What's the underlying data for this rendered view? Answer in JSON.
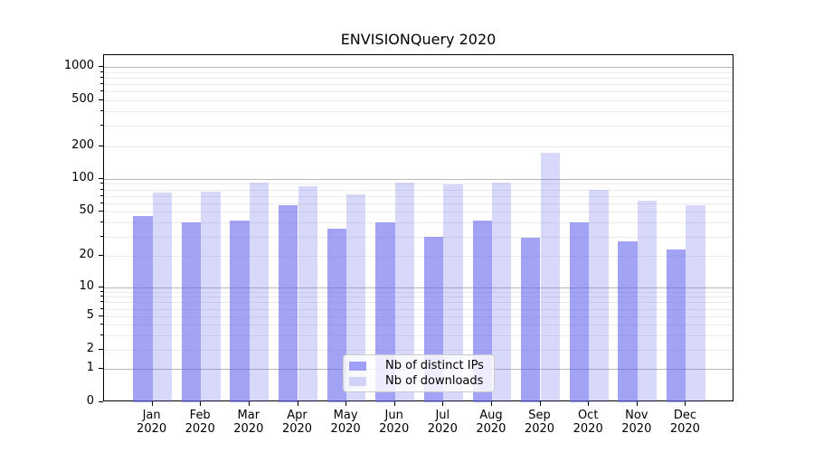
{
  "chart_data": {
    "type": "bar",
    "title": "ENVISIONQuery 2020",
    "categories": [
      "Jan",
      "Feb",
      "Mar",
      "Apr",
      "May",
      "Jun",
      "Jul",
      "Aug",
      "Sep",
      "Oct",
      "Nov",
      "Dec"
    ],
    "year_label": "2020",
    "series": [
      {
        "name": "Nb of distinct IPs",
        "color": "rgba(107,107,240,0.62)",
        "color_hex_on_white": "#a4a4f6",
        "values": [
          46,
          40,
          42,
          58,
          35,
          40,
          30,
          42,
          29,
          40,
          27,
          23
        ]
      },
      {
        "name": "Nb of downloads",
        "color": "rgba(116,116,236,0.28)",
        "color_hex_on_white": "#d9d9f6",
        "values": [
          75,
          76,
          92,
          85,
          72,
          93,
          88,
          93,
          174,
          80,
          63,
          58
        ]
      }
    ],
    "yticks": [
      0,
      1,
      2,
      5,
      10,
      20,
      50,
      100,
      200,
      500,
      1000
    ],
    "yscale": "symlog",
    "ylim": [
      0,
      1300
    ],
    "xlabel": "",
    "ylabel": "",
    "grid": {
      "major_gridlines": [
        1,
        10,
        100,
        1000
      ],
      "minor_decades": [
        1,
        10,
        100
      ],
      "minor_multipliers": [
        2,
        3,
        4,
        5,
        6,
        7,
        8,
        9
      ],
      "major_color": "#b5b5b5",
      "minor_color": "#ebebeb"
    },
    "legend": {
      "position": "lower-center",
      "entries": [
        "Nb of distinct IPs",
        "Nb of downloads"
      ]
    }
  }
}
